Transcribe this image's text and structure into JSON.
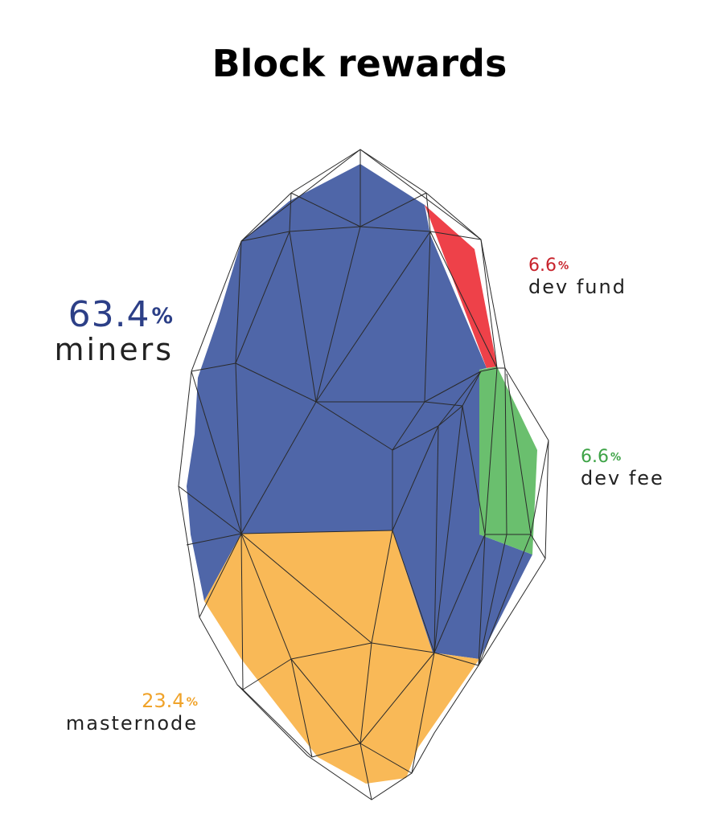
{
  "title": "Block rewards",
  "colors": {
    "miners": "#4f66a8",
    "dev_fund": "#ee4149",
    "dev_fee": "#6abf6e",
    "masternode": "#f9b957",
    "miners_text": "#2c3f87",
    "dev_fund_text": "#c8232c",
    "dev_fee_text": "#3da346",
    "masternode_text": "#f0a32a"
  },
  "chart_data": {
    "type": "pie",
    "title": "Block rewards",
    "slices": [
      {
        "label": "miners",
        "value": 63.4,
        "pct_text": "63.4",
        "color": "#4f66a8"
      },
      {
        "label": "masternode",
        "value": 23.4,
        "pct_text": "23.4",
        "color": "#f9b957"
      },
      {
        "label": "dev fund",
        "value": 6.6,
        "pct_text": "6.6",
        "color": "#ee4149"
      },
      {
        "label": "dev fee",
        "value": 6.6,
        "pct_text": "6.6",
        "color": "#6abf6e"
      }
    ],
    "percent_sign": "%"
  }
}
